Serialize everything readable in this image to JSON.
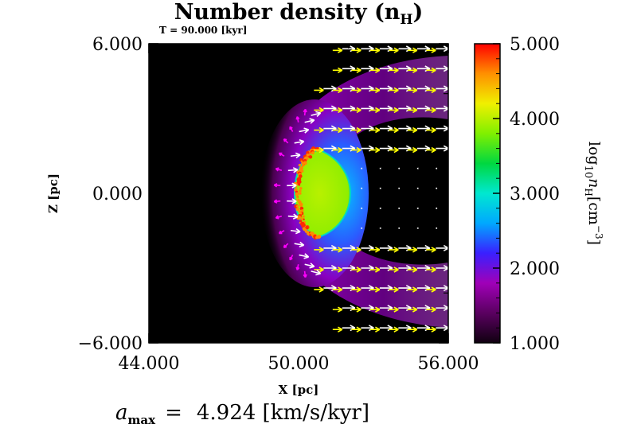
{
  "chart_data": {
    "type": "heatmap",
    "title": "Number density (n",
    "title_subscript": "H",
    "title_close": ")",
    "subtitle": "T =   90.000 [kyr]",
    "xlabel": "X [pc]",
    "ylabel": "Z [pc]",
    "xlim": [
      44.0,
      56.0
    ],
    "ylim": [
      -6.0,
      6.0
    ],
    "x_ticks": [
      "44.000",
      "50.000",
      "56.000"
    ],
    "y_ticks": [
      "6.000",
      "0.000",
      "−6.000"
    ],
    "x_tick_values": [
      44,
      50,
      56
    ],
    "y_tick_values": [
      6,
      0,
      -6
    ],
    "colorbar": {
      "label_prefix": "log",
      "label_sub": "10",
      "label_var": "n",
      "label_var_sub": "H",
      "label_unit": "[cm",
      "label_exp": "−3",
      "label_close": "]",
      "range": [
        1.0,
        5.0
      ],
      "ticks": [
        "5.000",
        "4.000",
        "3.000",
        "2.000",
        "1.000"
      ],
      "tick_values": [
        5,
        4,
        3,
        2,
        1
      ],
      "colormap": [
        "#100010",
        "#5a0060",
        "#a000b8",
        "#3a20ff",
        "#00a8ff",
        "#00e8d0",
        "#00d840",
        "#80f000",
        "#f0f000",
        "#ff9000",
        "#ff0000"
      ]
    },
    "features": {
      "dense_clump_center": [
        51.0,
        0.5
      ],
      "dense_clump_radius": [
        1.7,
        3.5
      ],
      "dense_clump_log_n": 3.9,
      "ionization_front_log_n": 4.6,
      "background_log_n": 1.0,
      "shell_peak_log_n": 2.6
    },
    "annotation": {
      "a_label": "a",
      "a_sub": "max",
      "a_eq": "=",
      "a_value": "4.924 [km/s/kyr]"
    }
  },
  "colors": {
    "arrow_outer": "#ffffff",
    "arrow_mid": "#ffff00",
    "arrow_front": "#ff00ff",
    "background": "#000000"
  }
}
